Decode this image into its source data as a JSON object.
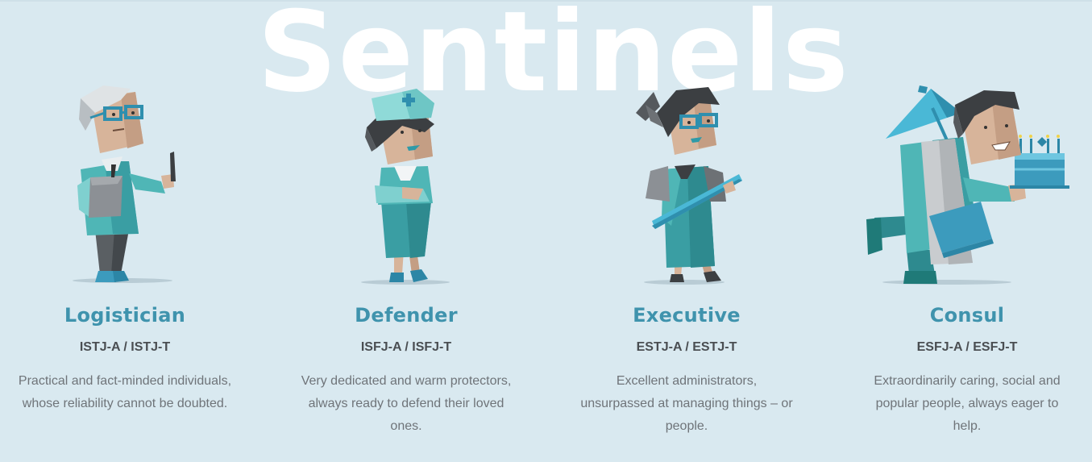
{
  "section": {
    "title": "Sentinels",
    "accent_color": "#3f93ad",
    "background_color": "#d9e9f0"
  },
  "cards": [
    {
      "name": "Logistician",
      "code": "ISTJ-A / ISTJ-T",
      "desc_lines": [
        "Practical and fact-minded individuals,",
        "whose reliability cannot be doubted."
      ],
      "illustration": "logistician-illustration"
    },
    {
      "name": "Defender",
      "code": "ISFJ-A / ISFJ-T",
      "desc_lines": [
        "Very dedicated and warm protectors,",
        "always ready to defend their loved",
        "ones."
      ],
      "illustration": "defender-illustration"
    },
    {
      "name": "Executive",
      "code": "ESTJ-A / ESTJ-T",
      "desc_lines": [
        "Excellent administrators,",
        "unsurpassed at managing things – or",
        "people."
      ],
      "illustration": "executive-illustration"
    },
    {
      "name": "Consul",
      "code": "ESFJ-A / ESFJ-T",
      "desc_lines": [
        "Extraordinarily caring, social and",
        "popular people, always eager to",
        "help."
      ],
      "illustration": "consul-illustration"
    }
  ]
}
